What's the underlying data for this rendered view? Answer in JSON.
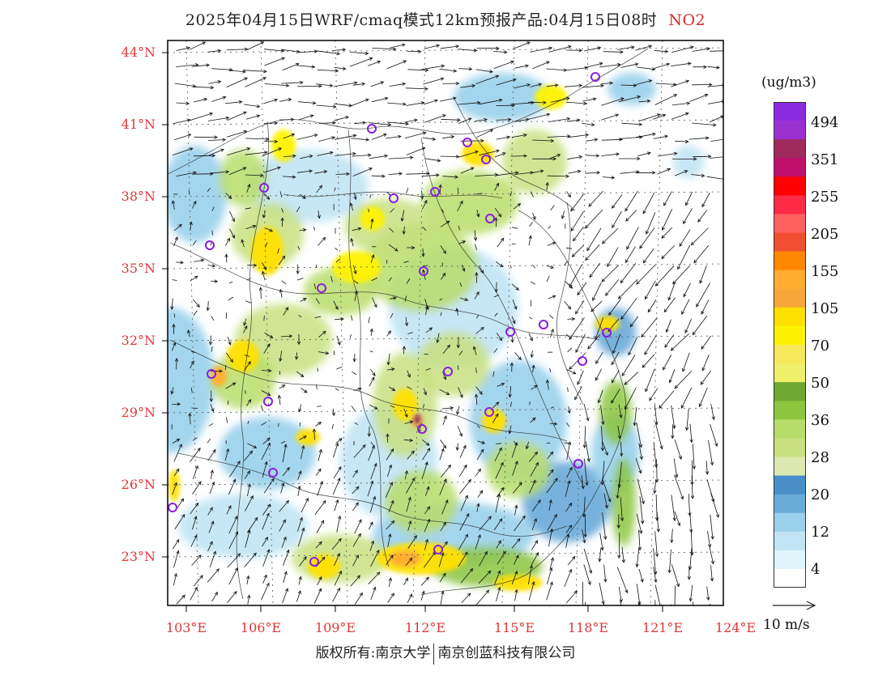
{
  "header": {
    "title": "2025年04月15日WRF/cmaq模式12km预报产品:04月15日08时",
    "species": "NO2"
  },
  "axes": {
    "lat_labels": [
      "44°N",
      "41°N",
      "38°N",
      "35°N",
      "32°N",
      "29°N",
      "26°N",
      "23°N"
    ],
    "lon_labels": [
      "103°E",
      "106°E",
      "109°E",
      "112°E",
      "115°E",
      "118°E",
      "121°E",
      "124°E"
    ]
  },
  "legend": {
    "unit": "(ug/m3)",
    "levels": [
      "494",
      "351",
      "255",
      "205",
      "155",
      "105",
      "70",
      "50",
      "36",
      "28",
      "20",
      "12",
      "4"
    ],
    "colors": [
      "#8a2be2",
      "#9b30d0",
      "#a02a5c",
      "#c0106e",
      "#ff0000",
      "#ff2a45",
      "#ff6060",
      "#f05030",
      "#ff8800",
      "#ffad30",
      "#f8a838",
      "#ffe000",
      "#fff200",
      "#f6e85a",
      "#eef06a",
      "#6ea832",
      "#8cc63e",
      "#b8dd6a",
      "#c8e080",
      "#dde8b0",
      "#4a8ec8",
      "#6aaad8",
      "#9ad0ec",
      "#c0e4f4",
      "#e0f4fc",
      "#ffffff"
    ]
  },
  "wind_reference": {
    "label": "10 m/s"
  },
  "footer": {
    "left": "版权所有:南京大学",
    "right": "南京创蓝科技有限公司"
  },
  "map_colors": {
    "frame": "#000000",
    "border": "#222222",
    "grid": "#555555",
    "site_marker": "#8a1de0"
  }
}
